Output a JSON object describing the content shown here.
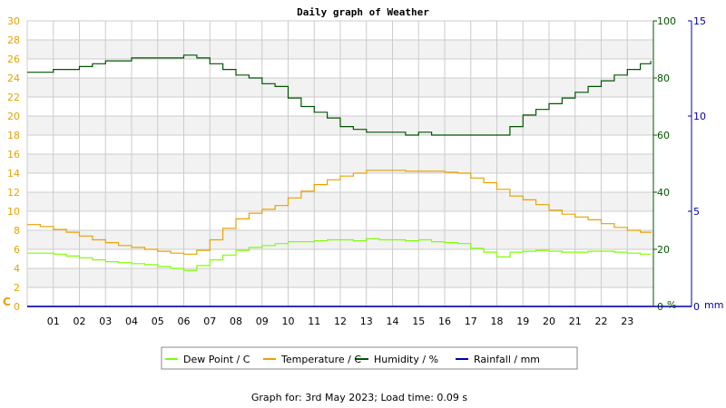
{
  "title": "Daily graph of Weather",
  "footer": "Graph for: 3rd May 2023; Load time: 0.09 s",
  "colors": {
    "dew_point": "#7fff00",
    "temperature": "#e8a200",
    "humidity": "#005500",
    "rainfall": "#0000aa",
    "left_axis": "#e8a200",
    "band": "#f2f2f2",
    "grid": "#cccccc"
  },
  "axes": {
    "left_unit": "C",
    "humidity_unit": "%",
    "rain_unit": "mm"
  },
  "chart_data": {
    "type": "line",
    "title": "Daily graph of Weather",
    "x_ticks": [
      "01",
      "02",
      "03",
      "04",
      "05",
      "06",
      "07",
      "08",
      "09",
      "10",
      "11",
      "12",
      "13",
      "14",
      "15",
      "16",
      "17",
      "18",
      "19",
      "20",
      "21",
      "22",
      "23"
    ],
    "xlim": [
      0,
      24
    ],
    "y_temperature": {
      "lim": [
        0,
        30
      ],
      "ticks": [
        "0",
        "2",
        "4",
        "6",
        "8",
        "10",
        "12",
        "14",
        "16",
        "18",
        "20",
        "22",
        "24",
        "26",
        "28",
        "30"
      ],
      "label": "C"
    },
    "y_humidity": {
      "lim": [
        0,
        100
      ],
      "ticks": [
        "0",
        "20",
        "40",
        "60",
        "80",
        "100"
      ],
      "label": "%"
    },
    "y_rain": {
      "lim": [
        0,
        15
      ],
      "ticks": [
        "0",
        "5",
        "10",
        "15"
      ],
      "label": "mm"
    },
    "legend_position": "bottom",
    "grid": true,
    "series": [
      {
        "name": "Dew Point / C",
        "axis": "temperature",
        "x": [
          0,
          0.5,
          1,
          1.5,
          2,
          2.5,
          3,
          3.5,
          4,
          4.5,
          5,
          5.5,
          6,
          6.5,
          7,
          7.5,
          8,
          8.5,
          9,
          9.5,
          10,
          10.5,
          11,
          11.5,
          12,
          12.5,
          13,
          13.5,
          14,
          14.5,
          15,
          15.5,
          16,
          16.5,
          17,
          17.5,
          18,
          18.5,
          19,
          19.5,
          20,
          20.5,
          21,
          21.5,
          22,
          22.5,
          23,
          23.5,
          23.9
        ],
        "y": [
          5.6,
          5.6,
          5.5,
          5.3,
          5.1,
          4.9,
          4.7,
          4.6,
          4.5,
          4.4,
          4.2,
          4.0,
          3.8,
          4.3,
          4.9,
          5.4,
          5.9,
          6.2,
          6.4,
          6.6,
          6.8,
          6.8,
          6.9,
          7.0,
          7.0,
          6.9,
          7.1,
          7.0,
          7.0,
          6.9,
          7.0,
          6.8,
          6.7,
          6.6,
          6.1,
          5.7,
          5.2,
          5.7,
          5.8,
          5.9,
          5.8,
          5.7,
          5.7,
          5.8,
          5.8,
          5.7,
          5.6,
          5.5,
          5.5
        ]
      },
      {
        "name": "Temperature / C",
        "axis": "temperature",
        "x": [
          0,
          0.5,
          1,
          1.5,
          2,
          2.5,
          3,
          3.5,
          4,
          4.5,
          5,
          5.5,
          6,
          6.5,
          7,
          7.5,
          8,
          8.5,
          9,
          9.5,
          10,
          10.5,
          11,
          11.5,
          12,
          12.5,
          13,
          13.5,
          14,
          14.5,
          15,
          15.5,
          16,
          16.5,
          17,
          17.5,
          18,
          18.5,
          19,
          19.5,
          20,
          20.5,
          21,
          21.5,
          22,
          22.5,
          23,
          23.5,
          23.9
        ],
        "y": [
          8.6,
          8.4,
          8.1,
          7.8,
          7.4,
          7.0,
          6.7,
          6.4,
          6.2,
          6.0,
          5.8,
          5.6,
          5.5,
          5.9,
          7.0,
          8.2,
          9.2,
          9.8,
          10.2,
          10.6,
          11.4,
          12.1,
          12.8,
          13.3,
          13.7,
          14.0,
          14.3,
          14.3,
          14.3,
          14.2,
          14.2,
          14.2,
          14.1,
          14.0,
          13.5,
          13.0,
          12.3,
          11.6,
          11.2,
          10.7,
          10.1,
          9.7,
          9.4,
          9.1,
          8.7,
          8.3,
          8.0,
          7.8,
          7.7
        ]
      },
      {
        "name": "Humidity / %",
        "axis": "humidity",
        "x": [
          0,
          0.5,
          1,
          1.5,
          2,
          2.5,
          3,
          3.5,
          4,
          4.5,
          5,
          5.5,
          6,
          6.5,
          7,
          7.5,
          8,
          8.5,
          9,
          9.5,
          10,
          10.5,
          11,
          11.5,
          12,
          12.5,
          13,
          13.5,
          14,
          14.5,
          15,
          15.5,
          16,
          16.5,
          17,
          17.5,
          18,
          18.5,
          19,
          19.5,
          20,
          20.5,
          21,
          21.5,
          22,
          22.5,
          23,
          23.5,
          23.9
        ],
        "y": [
          82,
          82,
          83,
          83,
          84,
          85,
          86,
          86,
          87,
          87,
          87,
          87,
          88,
          87,
          85,
          83,
          81,
          80,
          78,
          77,
          73,
          70,
          68,
          66,
          63,
          62,
          61,
          61,
          61,
          60,
          61,
          60,
          60,
          60,
          60,
          60,
          60,
          63,
          67,
          69,
          71,
          73,
          75,
          77,
          79,
          81,
          83,
          85,
          86
        ]
      },
      {
        "name": "Rainfall / mm",
        "axis": "rain",
        "x": [
          0,
          23.9
        ],
        "y": [
          0,
          0
        ]
      }
    ]
  }
}
